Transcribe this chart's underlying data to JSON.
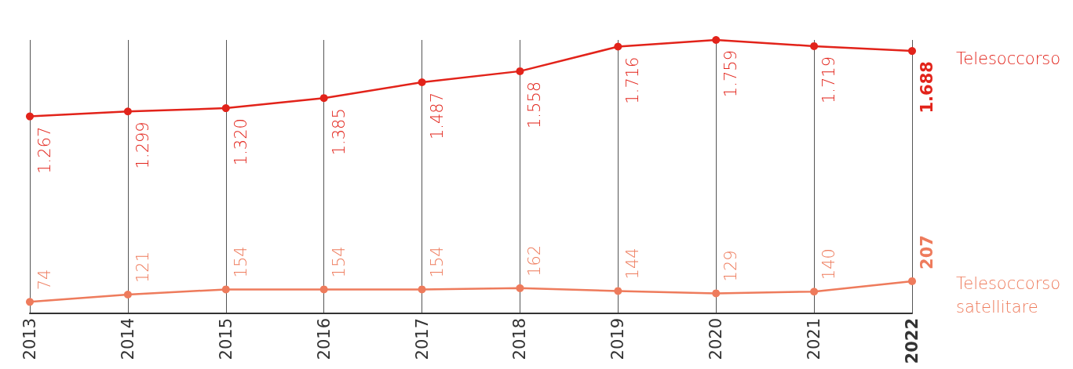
{
  "chart_data": {
    "type": "line",
    "categories": [
      "2013",
      "2014",
      "2015",
      "2016",
      "2017",
      "2018",
      "2019",
      "2020",
      "2021",
      "2022"
    ],
    "series": [
      {
        "name": "Telesoccorso",
        "color": "#e2231a",
        "values": [
          1267,
          1299,
          1320,
          1385,
          1487,
          1558,
          1716,
          1759,
          1719,
          1688
        ],
        "value_labels": [
          "1.267",
          "1.299",
          "1.320",
          "1.385",
          "1.487",
          "1.558",
          "1.716",
          "1.759",
          "1.719",
          "1.688"
        ]
      },
      {
        "name": "Telesoccorso satellitare",
        "color": "#ee7b5c",
        "values": [
          74,
          121,
          154,
          154,
          154,
          162,
          144,
          129,
          140,
          207
        ],
        "value_labels": [
          "74",
          "121",
          "154",
          "154",
          "154",
          "162",
          "144",
          "129",
          "140",
          "207"
        ]
      }
    ],
    "grid": "x",
    "tick_labels": "x",
    "legend": false,
    "marker": "circle",
    "line_style": "solid"
  }
}
